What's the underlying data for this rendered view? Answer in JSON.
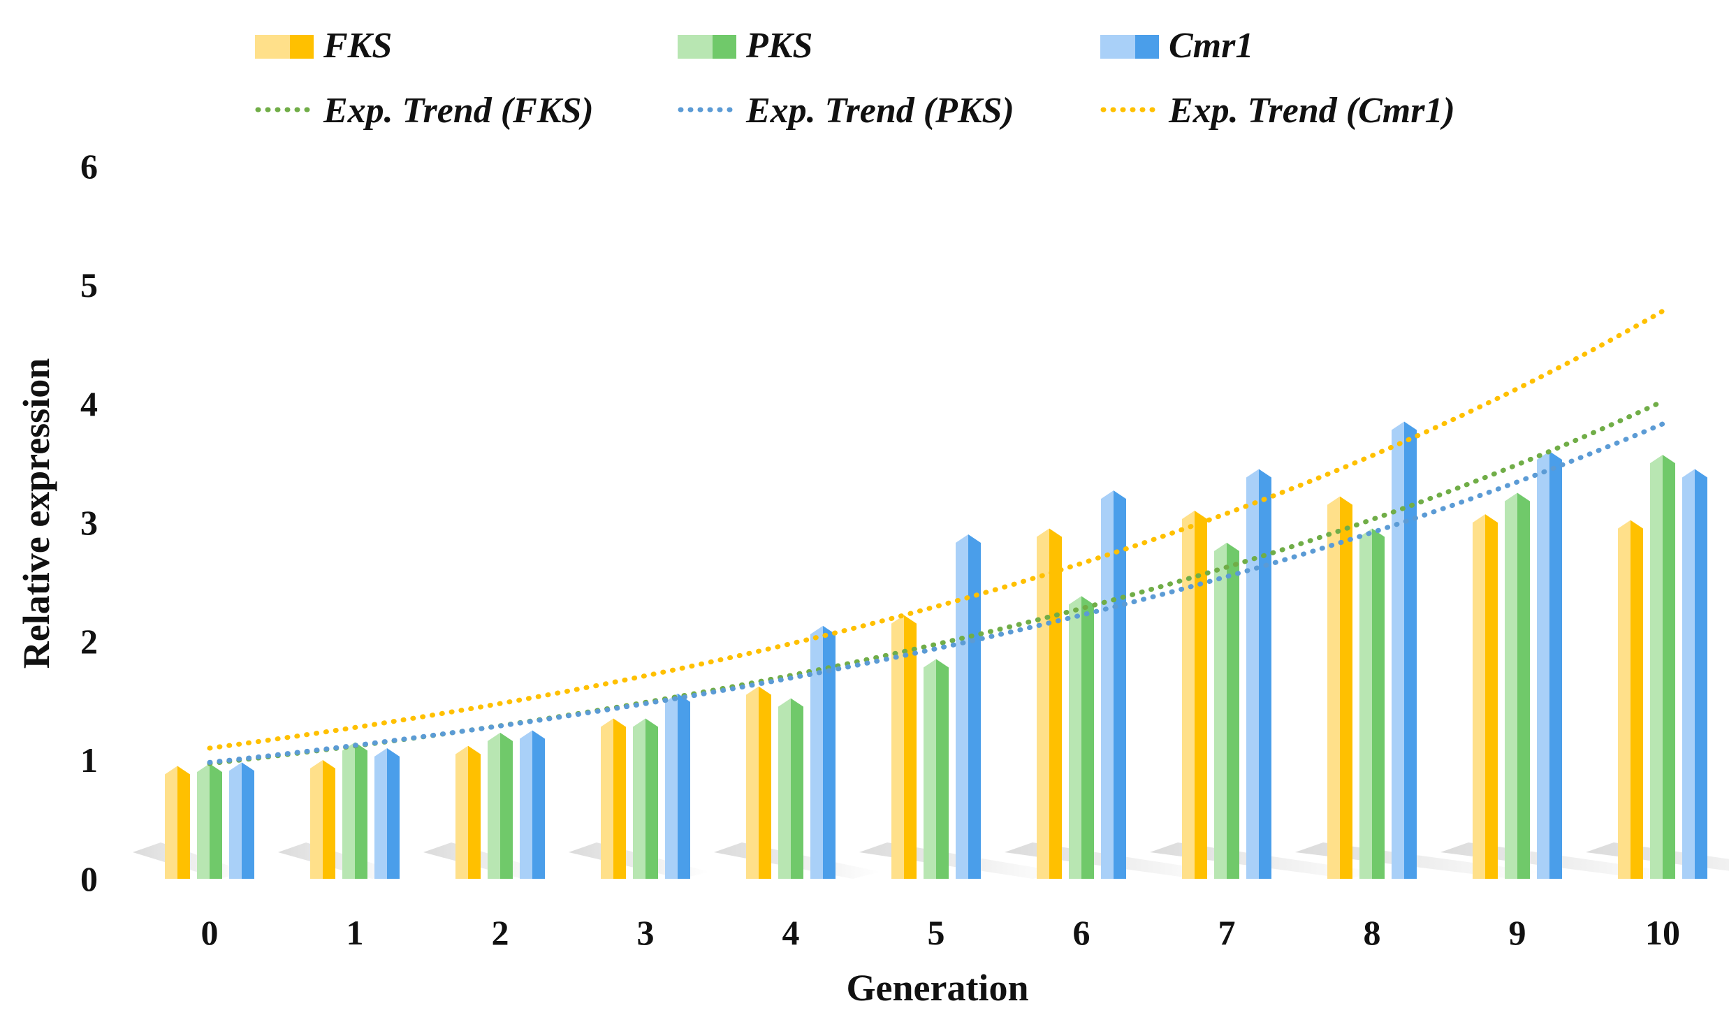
{
  "chart_data": {
    "type": "bar",
    "title": "",
    "xlabel": "Generation",
    "ylabel": "Relative expression",
    "ylim": [
      0,
      6
    ],
    "yticks": [
      "0",
      "1",
      "2",
      "3",
      "4",
      "5",
      "6"
    ],
    "categories": [
      "0",
      "1",
      "2",
      "3",
      "4",
      "5",
      "6",
      "7",
      "8",
      "9",
      "10"
    ],
    "grid": false,
    "legend_position": "top",
    "series": [
      {
        "name": "FKS",
        "color": "#FFC000",
        "light": "#FFE08A",
        "values": [
          0.95,
          1.0,
          1.12,
          1.35,
          1.62,
          2.22,
          2.95,
          3.1,
          3.22,
          3.07,
          3.02
        ]
      },
      {
        "name": "PKS",
        "color": "#70C96A",
        "light": "#B8E6B2",
        "values": [
          0.97,
          1.15,
          1.23,
          1.35,
          1.52,
          1.85,
          2.38,
          2.83,
          2.95,
          3.25,
          3.57
        ]
      },
      {
        "name": "Cmr1",
        "color": "#4A9EEA",
        "light": "#A9D0F8",
        "values": [
          0.98,
          1.1,
          1.25,
          1.56,
          2.13,
          2.9,
          3.27,
          3.45,
          3.85,
          3.6,
          3.45
        ]
      }
    ],
    "trendlines": [
      {
        "name": "Exp. Trend (FKS)",
        "type": "exponential",
        "color": "#70AD47",
        "start": 0.97,
        "end": 4.02
      },
      {
        "name": "Exp. Trend (PKS)",
        "type": "exponential",
        "color": "#5B9BD5",
        "start": 0.98,
        "end": 3.83
      },
      {
        "name": "Exp. Trend (Cmr1)",
        "type": "exponential",
        "color": "#FFC000",
        "start": 1.1,
        "end": 4.78
      }
    ]
  }
}
